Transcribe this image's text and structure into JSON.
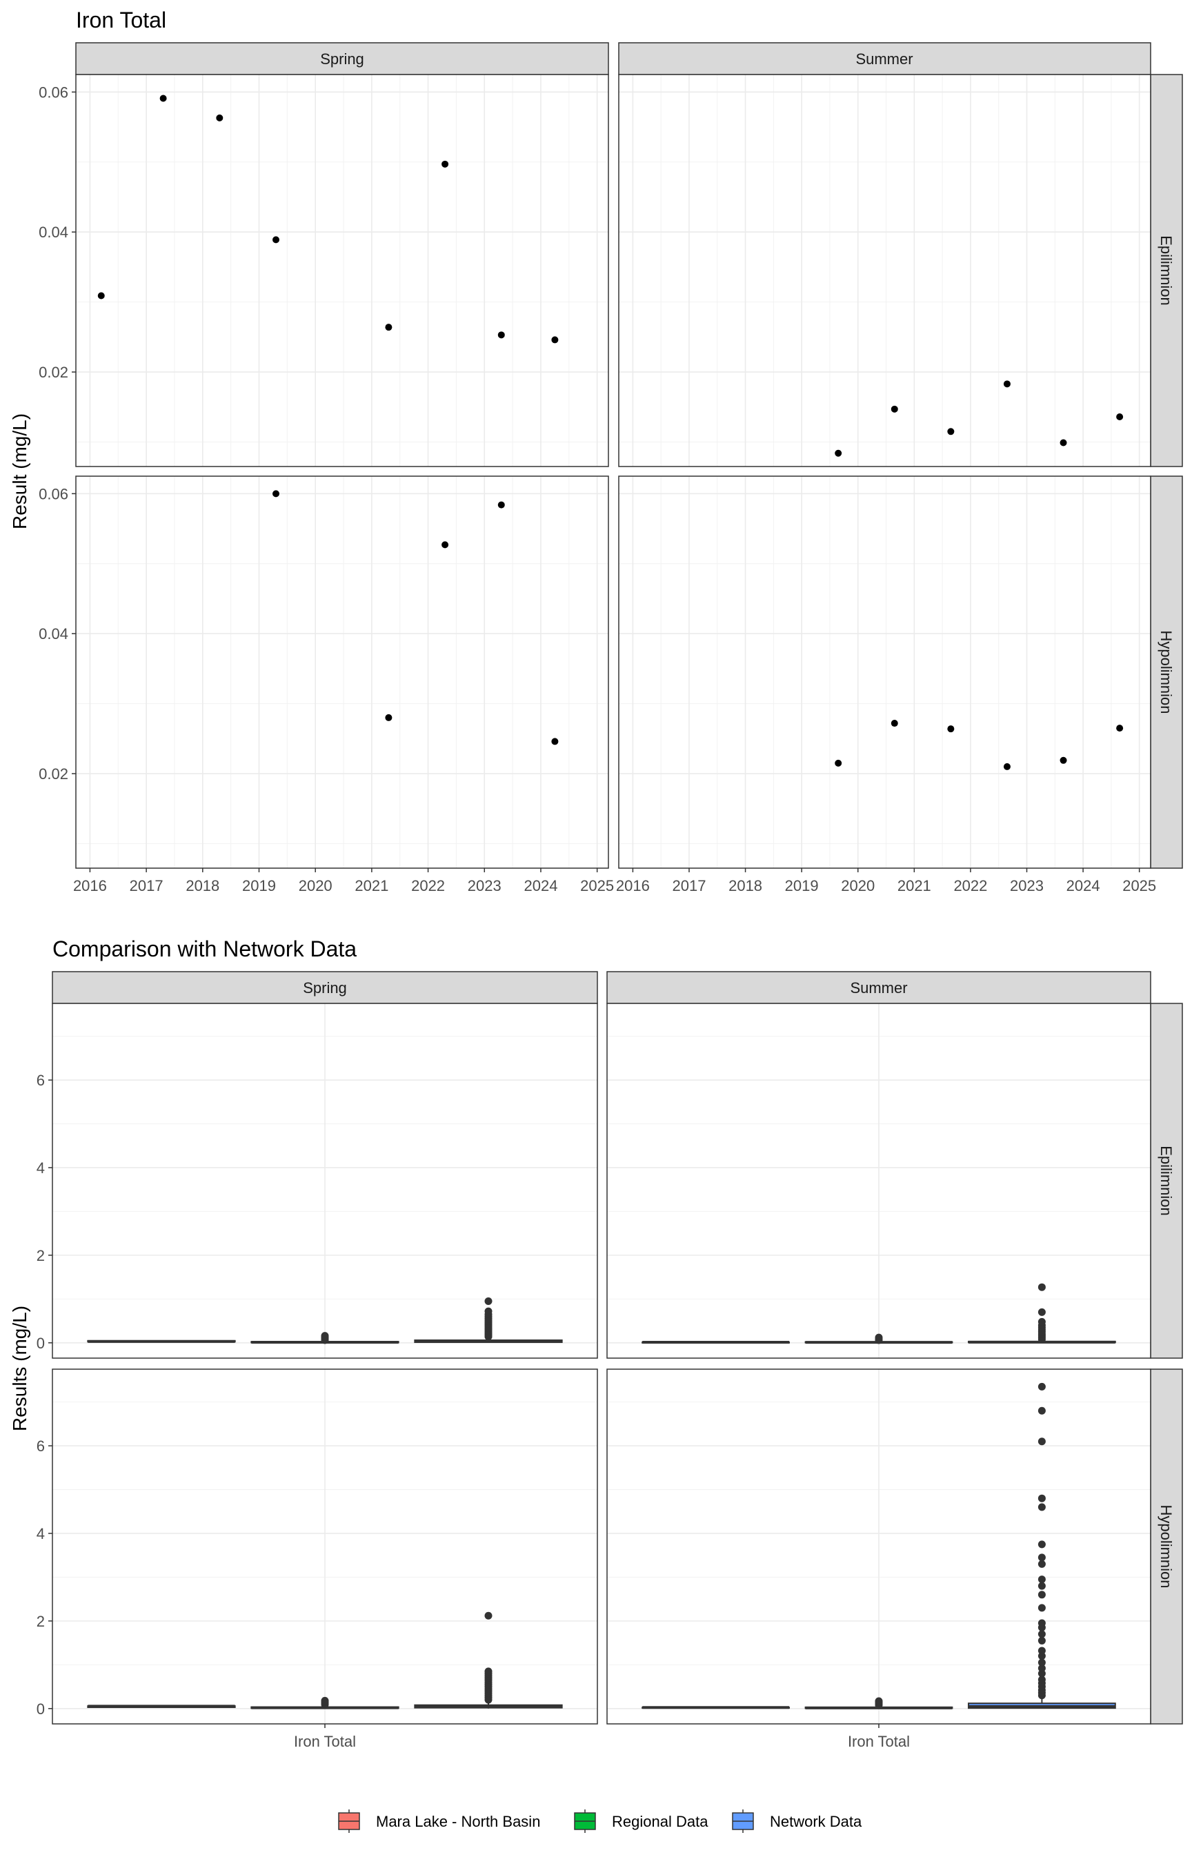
{
  "chart_data": [
    {
      "type": "scatter",
      "title": "Iron Total",
      "ylabel": "Result (mg/L)",
      "xlabel": "",
      "column_facets": [
        "Spring",
        "Summer"
      ],
      "row_facets": [
        "Epilimnion",
        "Hypolimnion"
      ],
      "xlim": [
        2015.75,
        2025.2
      ],
      "x_ticks": [
        2016,
        2017,
        2018,
        2019,
        2020,
        2021,
        2022,
        2023,
        2024,
        2025
      ],
      "ylim": [
        0.0065,
        0.0625
      ],
      "y_ticks": [
        0.02,
        0.04,
        0.06
      ],
      "y_tick_labels": [
        "0.02",
        "0.04",
        "0.06"
      ],
      "grid": true,
      "panels": [
        {
          "column": "Spring",
          "row": "Epilimnion",
          "x": [
            2016.2,
            2017.3,
            2018.3,
            2019.3,
            2021.3,
            2022.3,
            2023.3,
            2024.25
          ],
          "y": [
            0.0309,
            0.0591,
            0.0563,
            0.0389,
            0.0264,
            0.0497,
            0.0253,
            0.0246
          ]
        },
        {
          "column": "Summer",
          "row": "Epilimnion",
          "x": [
            2019.65,
            2020.65,
            2021.65,
            2022.65,
            2023.65,
            2024.65
          ],
          "y": [
            0.0084,
            0.0147,
            0.0115,
            0.0183,
            0.0099,
            0.0136
          ]
        },
        {
          "column": "Spring",
          "row": "Hypolimnion",
          "x": [
            2019.3,
            2021.3,
            2022.3,
            2023.3,
            2024.25
          ],
          "y": [
            0.06,
            0.028,
            0.0527,
            0.0584,
            0.0246
          ]
        },
        {
          "column": "Summer",
          "row": "Hypolimnion",
          "x": [
            2019.65,
            2020.65,
            2021.65,
            2022.65,
            2023.65,
            2024.65
          ],
          "y": [
            0.0215,
            0.0272,
            0.0264,
            0.021,
            0.0219,
            0.0265
          ]
        }
      ]
    },
    {
      "type": "box",
      "title": "Comparison with Network Data",
      "ylabel": "Results (mg/L)",
      "xlabel": "",
      "categories": [
        "Iron Total"
      ],
      "column_facets": [
        "Spring",
        "Summer"
      ],
      "row_facets": [
        "Epilimnion",
        "Hypolimnion"
      ],
      "ylim": [
        -0.35,
        7.75
      ],
      "y_ticks": [
        0,
        2,
        4,
        6
      ],
      "grid": true,
      "legend_position": "bottom",
      "series": [
        {
          "name": "Mara Lake - North Basin",
          "color": "#F8766D"
        },
        {
          "name": "Regional Data",
          "color": "#00BA38"
        },
        {
          "name": "Network Data",
          "color": "#619CFF"
        }
      ],
      "panels": [
        {
          "column": "Spring",
          "row": "Epilimnion",
          "boxes": [
            {
              "series": "Mara Lake - North Basin",
              "q1": 0.025,
              "median": 0.031,
              "q3": 0.047,
              "lower": 0.025,
              "upper": 0.059,
              "outliers": []
            },
            {
              "series": "Regional Data",
              "q1": 0.005,
              "median": 0.012,
              "q3": 0.025,
              "lower": 0.001,
              "upper": 0.045,
              "outliers": [
                0.06,
                0.08,
                0.1,
                0.12,
                0.14,
                0.16
              ]
            },
            {
              "series": "Network Data",
              "q1": 0.012,
              "median": 0.028,
              "q3": 0.06,
              "lower": 0.001,
              "upper": 0.12,
              "outliers": [
                0.14,
                0.18,
                0.22,
                0.26,
                0.3,
                0.34,
                0.38,
                0.42,
                0.46,
                0.5,
                0.55,
                0.6,
                0.65,
                0.72,
                0.95
              ]
            }
          ]
        },
        {
          "column": "Summer",
          "row": "Epilimnion",
          "boxes": [
            {
              "series": "Mara Lake - North Basin",
              "q1": 0.01,
              "median": 0.012,
              "q3": 0.015,
              "lower": 0.008,
              "upper": 0.018,
              "outliers": []
            },
            {
              "series": "Regional Data",
              "q1": 0.005,
              "median": 0.01,
              "q3": 0.02,
              "lower": 0.001,
              "upper": 0.04,
              "outliers": [
                0.06,
                0.09,
                0.12
              ]
            },
            {
              "series": "Network Data",
              "q1": 0.008,
              "median": 0.015,
              "q3": 0.03,
              "lower": 0.001,
              "upper": 0.06,
              "outliers": [
                0.08,
                0.12,
                0.16,
                0.2,
                0.25,
                0.3,
                0.35,
                0.4,
                0.48,
                0.7,
                1.27
              ]
            }
          ]
        },
        {
          "column": "Spring",
          "row": "Hypolimnion",
          "boxes": [
            {
              "series": "Mara Lake - North Basin",
              "q1": 0.028,
              "median": 0.053,
              "q3": 0.058,
              "lower": 0.025,
              "upper": 0.06,
              "outliers": []
            },
            {
              "series": "Regional Data",
              "q1": 0.008,
              "median": 0.018,
              "q3": 0.035,
              "lower": 0.001,
              "upper": 0.07,
              "outliers": [
                0.09,
                0.12,
                0.15,
                0.18
              ]
            },
            {
              "series": "Network Data",
              "q1": 0.018,
              "median": 0.04,
              "q3": 0.08,
              "lower": 0.001,
              "upper": 0.16,
              "outliers": [
                0.2,
                0.25,
                0.3,
                0.35,
                0.4,
                0.45,
                0.5,
                0.55,
                0.6,
                0.65,
                0.7,
                0.75,
                0.8,
                0.85,
                2.12
              ]
            }
          ]
        },
        {
          "column": "Summer",
          "row": "Hypolimnion",
          "boxes": [
            {
              "series": "Mara Lake - North Basin",
              "q1": 0.021,
              "median": 0.024,
              "q3": 0.027,
              "lower": 0.021,
              "upper": 0.027,
              "outliers": []
            },
            {
              "series": "Regional Data",
              "q1": 0.006,
              "median": 0.015,
              "q3": 0.03,
              "lower": 0.001,
              "upper": 0.06,
              "outliers": [
                0.08,
                0.11,
                0.14,
                0.17
              ]
            },
            {
              "series": "Network Data",
              "q1": 0.01,
              "median": 0.045,
              "q3": 0.12,
              "lower": 0.001,
              "upper": 0.27,
              "outliers": [
                0.3,
                0.36,
                0.42,
                0.5,
                0.58,
                0.66,
                0.8,
                0.92,
                1.05,
                1.2,
                1.32,
                1.55,
                1.7,
                1.85,
                1.95,
                2.3,
                2.6,
                2.8,
                2.95,
                3.3,
                3.45,
                3.75,
                4.6,
                4.8,
                6.1,
                6.8,
                7.35
              ]
            }
          ]
        }
      ]
    }
  ]
}
